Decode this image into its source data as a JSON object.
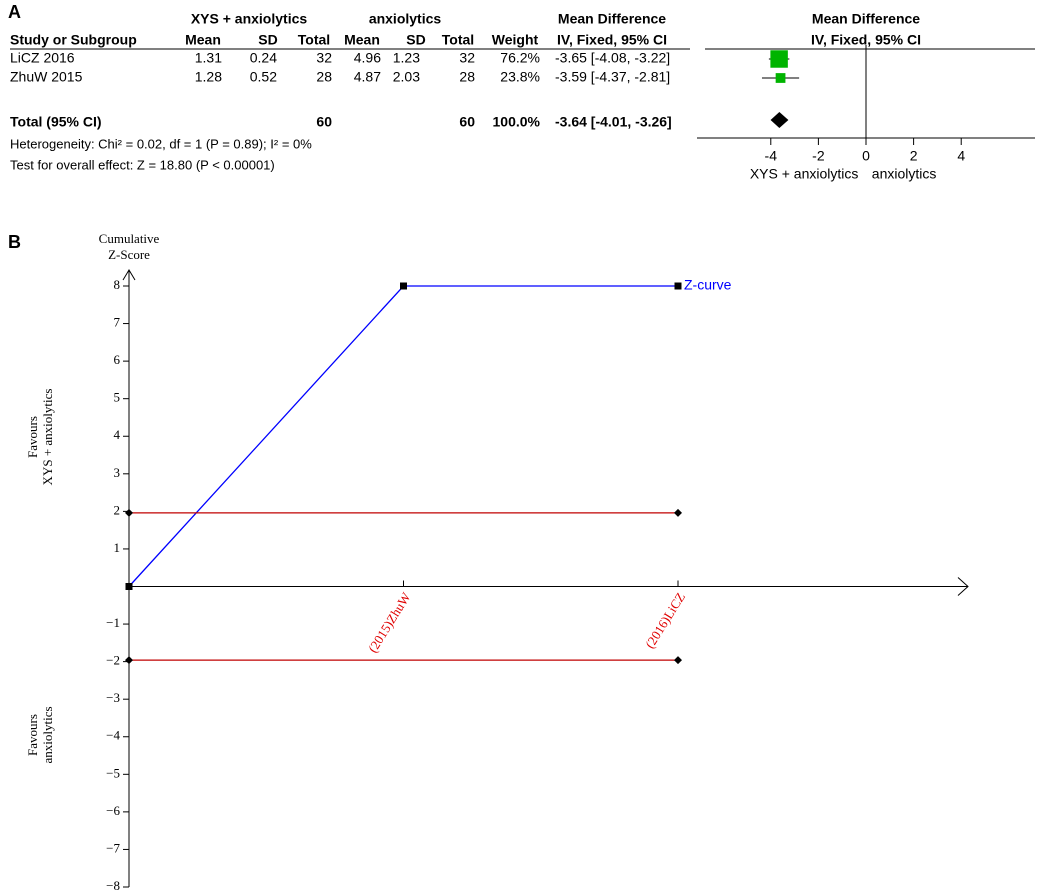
{
  "panel_labels": [
    "A",
    "B"
  ],
  "forest_table": {
    "group_headers": [
      "XYS + anxiolytics",
      "anxiolytics",
      "Mean Difference",
      "Mean Difference"
    ],
    "columns": [
      "Study or Subgroup",
      "Mean",
      "SD",
      "Total",
      "Mean",
      "SD",
      "Total",
      "Weight",
      "IV, Fixed, 95% CI",
      "IV, Fixed, 95% CI"
    ],
    "rows": [
      [
        "LiCZ 2016",
        "1.31",
        "0.24",
        "32",
        "4.96",
        "1.23",
        "32",
        "76.2%",
        "-3.65 [-4.08, -3.22]"
      ],
      [
        "ZhuW 2015",
        "1.28",
        "0.52",
        "28",
        "4.87",
        "2.03",
        "28",
        "23.8%",
        "-3.59 [-4.37, -2.81]"
      ]
    ],
    "total_row": [
      "Total (95% CI)",
      "60",
      "60",
      "100.0%",
      "-3.64 [-4.01, -3.26]"
    ],
    "heterogeneity": "Heterogeneity: Chi² = 0.02, df = 1 (P = 0.89); I² = 0%",
    "overall_effect": "Test for overall effect: Z = 18.80 (P < 0.00001)"
  },
  "chart_data": [
    {
      "type": "forest",
      "values": [
        -3.65,
        -3.59
      ],
      "lower": [
        -4.08,
        -4.37
      ],
      "upper": [
        -3.22,
        -2.81
      ],
      "weights": [
        76.2,
        23.8
      ],
      "total": {
        "value": -3.64,
        "lower": -4.01,
        "upper": -3.26
      },
      "color": "#00b400",
      "xlim": [
        -7.1,
        7.1
      ],
      "xticks": [
        -4,
        -2,
        0,
        2,
        4
      ],
      "favours_labels": [
        "XYS + anxiolytics",
        "anxiolytics"
      ]
    },
    {
      "type": "line",
      "y_label": [
        "Cumulative",
        "Z-Score"
      ],
      "y_side_labels": [
        [
          "Favours",
          "XYS + anxiolytics"
        ],
        [
          "Favours",
          "anxiolytics"
        ]
      ],
      "categories": [
        null,
        "(2015)ZhuW",
        "(2016)LiCZ"
      ],
      "series": [
        {
          "name": "Z-curve",
          "color": "#0000ff",
          "values": [
            0,
            8,
            8
          ]
        },
        {
          "color": "#c00000",
          "values": [
            1.96,
            1.96,
            1.96
          ]
        },
        {
          "color": "#c00000",
          "values": [
            -1.96,
            -1.96,
            -1.96
          ]
        }
      ],
      "ylim": [
        -8,
        8
      ],
      "yticks": [
        {
          "value": -8,
          "label": "−8"
        },
        {
          "value": -7,
          "label": "−7"
        },
        {
          "value": -6,
          "label": "−6"
        },
        {
          "value": -5,
          "label": "−5"
        },
        {
          "value": -4,
          "label": "−4"
        },
        {
          "value": -3,
          "label": "−3"
        },
        {
          "value": -2,
          "label": "−2"
        },
        {
          "value": -1,
          "label": "−1"
        },
        1,
        2,
        3,
        4,
        5,
        6,
        7,
        8
      ]
    }
  ]
}
